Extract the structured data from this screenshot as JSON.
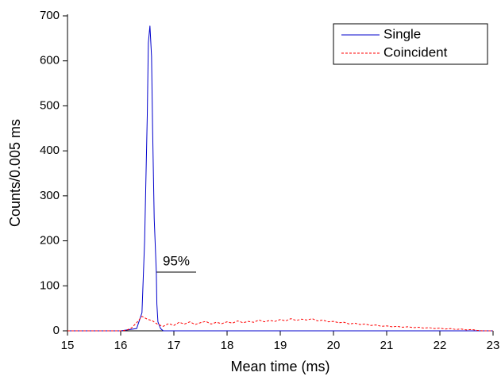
{
  "chart_data": {
    "type": "line",
    "xlabel": "Mean time (ms)",
    "ylabel": "Counts/0.005 ms",
    "xlim": [
      15,
      23
    ],
    "xticks": [
      15,
      16,
      17,
      18,
      19,
      20,
      21,
      22,
      23
    ],
    "ylim": [
      0,
      700
    ],
    "yticks": [
      0,
      100,
      200,
      300,
      400,
      500,
      600,
      700
    ],
    "legend": "upper right",
    "annotations": [
      "95%"
    ],
    "series": [
      {
        "name": "Single",
        "color": "#0000cc",
        "dashed": false,
        "x": [
          15,
          16,
          16.3,
          16.4,
          16.45,
          16.5,
          16.52,
          16.55,
          16.58,
          16.6,
          16.63,
          16.67,
          16.68,
          16.7,
          16.75,
          16.8,
          17,
          23
        ],
        "values": [
          0,
          0,
          5,
          40,
          200,
          480,
          640,
          678,
          610,
          450,
          250,
          130,
          60,
          20,
          5,
          0,
          0,
          0
        ]
      },
      {
        "name": "Coincident",
        "color": "#ff0000",
        "dashed": true,
        "x": [
          15,
          16.0,
          16.1,
          16.2,
          16.3,
          16.4,
          16.5,
          16.6,
          16.7,
          16.8,
          16.9,
          17.0,
          17.1,
          17.2,
          17.3,
          17.4,
          17.5,
          17.6,
          17.7,
          17.8,
          17.9,
          18.0,
          18.1,
          18.2,
          18.3,
          18.4,
          18.5,
          18.6,
          18.7,
          18.8,
          18.9,
          19.0,
          19.1,
          19.2,
          19.3,
          19.4,
          19.5,
          19.6,
          19.7,
          19.8,
          19.9,
          20.0,
          20.1,
          20.2,
          20.3,
          20.4,
          20.5,
          20.6,
          20.7,
          20.8,
          20.9,
          21.0,
          21.1,
          21.2,
          21.3,
          21.4,
          21.5,
          21.6,
          21.7,
          21.8,
          21.9,
          22.0,
          22.1,
          22.2,
          22.3,
          22.4,
          22.5,
          22.6,
          22.7,
          22.8,
          23
        ],
        "values": [
          0,
          0,
          1,
          6,
          18,
          32,
          26,
          22,
          14,
          10,
          16,
          12,
          19,
          15,
          20,
          14,
          18,
          21,
          15,
          19,
          16,
          20,
          17,
          22,
          18,
          21,
          19,
          24,
          20,
          23,
          21,
          25,
          22,
          27,
          23,
          26,
          24,
          27,
          22,
          24,
          20,
          21,
          18,
          19,
          15,
          17,
          14,
          15,
          12,
          13,
          10,
          11,
          9,
          10,
          8,
          9,
          7,
          8,
          6,
          7,
          5,
          6,
          4,
          5,
          3,
          4,
          2,
          3,
          1,
          0,
          0
        ]
      }
    ]
  }
}
